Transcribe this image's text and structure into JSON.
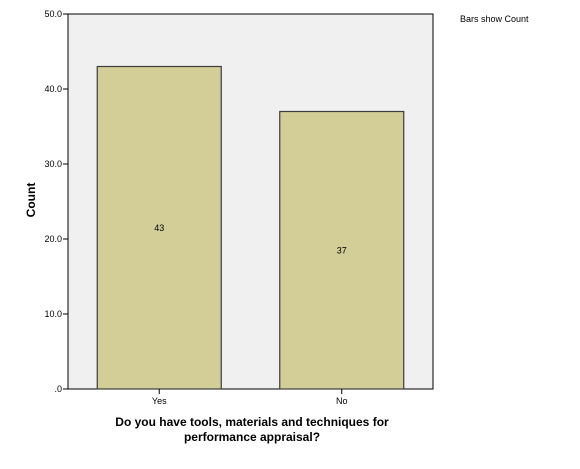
{
  "chart_data": {
    "type": "bar",
    "categories": [
      "Yes",
      "No"
    ],
    "values": [
      43,
      37
    ],
    "data_labels": [
      "43",
      "37"
    ],
    "xlabel_lines": [
      "Do you have tools, materials and techniques for",
      "performance appraisal?"
    ],
    "ylabel": "Count",
    "ylim": [
      0,
      50
    ],
    "yticks": [
      0,
      10,
      20,
      30,
      40,
      50
    ],
    "ytick_labels": [
      ".0",
      "10.0",
      "20.0",
      "30.0",
      "40.0",
      "50.0"
    ],
    "note": "Bars show Count",
    "grid": false,
    "colors": {
      "plot_background": "#f0f0f0",
      "bar_fill": "#d3ce97",
      "bar_stroke": "#3c3c3c",
      "axis": "#000000"
    }
  }
}
